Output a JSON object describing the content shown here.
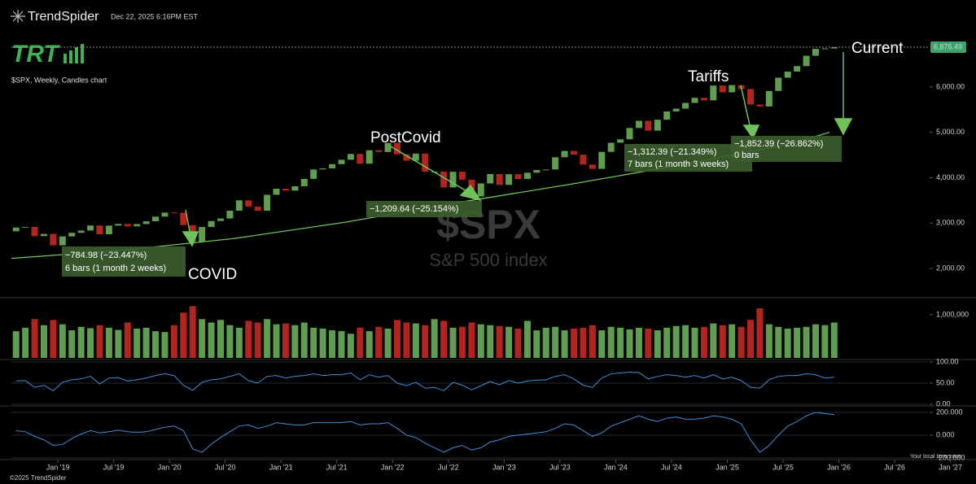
{
  "chart_data": {
    "type": "candlestick",
    "brand": "TrendSpider",
    "timestamp": "Dec 22, 2025 6:16PM EST",
    "logo": "TRT",
    "subtitle": "$SPX, Weekly, Candles chart",
    "watermark": "$SPX",
    "watermark_subtitle": "S&P 500 index",
    "copyright": "©2025 TrendSpider",
    "timezone_note": "Your local time zone",
    "up_color": "#5f9e4f",
    "down_color": "#b3241c",
    "ma_color": "#6fc35a",
    "x": [
      "2018-08",
      "2018-09",
      "2018-10",
      "2018-11",
      "2018-12",
      "2019-01",
      "2019-02",
      "2019-03",
      "2019-04",
      "2019-05",
      "2019-06",
      "2019-07",
      "2019-08",
      "2019-09",
      "2019-10",
      "2019-11",
      "2019-12",
      "2020-01",
      "2020-02",
      "2020-03",
      "2020-04",
      "2020-05",
      "2020-06",
      "2020-07",
      "2020-08",
      "2020-09",
      "2020-10",
      "2020-11",
      "2020-12",
      "2021-01",
      "2021-02",
      "2021-03",
      "2021-04",
      "2021-05",
      "2021-06",
      "2021-07",
      "2021-08",
      "2021-09",
      "2021-10",
      "2021-11",
      "2021-12",
      "2022-01",
      "2022-02",
      "2022-03",
      "2022-04",
      "2022-05",
      "2022-06",
      "2022-07",
      "2022-08",
      "2022-09",
      "2022-10",
      "2022-11",
      "2022-12",
      "2023-01",
      "2023-02",
      "2023-03",
      "2023-04",
      "2023-05",
      "2023-06",
      "2023-07",
      "2023-08",
      "2023-09",
      "2023-10",
      "2023-11",
      "2023-12",
      "2024-01",
      "2024-02",
      "2024-03",
      "2024-04",
      "2024-05",
      "2024-06",
      "2024-07",
      "2024-08",
      "2024-09",
      "2024-10",
      "2024-11",
      "2024-12",
      "2025-01",
      "2025-02",
      "2025-03",
      "2025-04",
      "2025-05",
      "2025-06",
      "2025-07",
      "2025-08",
      "2025-09",
      "2025-10",
      "2025-11",
      "2025-12"
    ],
    "open": [
      2816,
      2901,
      2914,
      2711,
      2760,
      2507,
      2704,
      2784,
      2834,
      2946,
      2752,
      2942,
      2980,
      2926,
      2977,
      3038,
      3141,
      3231,
      3226,
      2954,
      2585,
      2912,
      3044,
      3100,
      3271,
      3500,
      3363,
      3270,
      3622,
      3756,
      3714,
      3811,
      3973,
      4181,
      4204,
      4298,
      4395,
      4523,
      4308,
      4605,
      4567,
      4766,
      4516,
      4374,
      4530,
      4132,
      4132,
      3785,
      4130,
      3955,
      3586,
      3872,
      4080,
      3840,
      4077,
      3970,
      4109,
      4169,
      4180,
      4450,
      4589,
      4508,
      4288,
      4194,
      4568,
      4770,
      4846,
      5096,
      5254,
      5036,
      5278,
      5460,
      5522,
      5648,
      5762,
      5705,
      6032,
      5882,
      6041,
      5955,
      5612,
      5569,
      5912,
      6205,
      6339,
      6460,
      6688,
      6840,
      6849
    ],
    "close": [
      2901,
      2914,
      2711,
      2760,
      2507,
      2704,
      2784,
      2834,
      2946,
      2752,
      2942,
      2980,
      2926,
      2977,
      3038,
      3141,
      3231,
      3226,
      2954,
      2585,
      2912,
      3044,
      3100,
      3271,
      3500,
      3363,
      3270,
      3622,
      3756,
      3714,
      3811,
      3973,
      4181,
      4204,
      4298,
      4395,
      4523,
      4308,
      4605,
      4567,
      4766,
      4516,
      4374,
      4530,
      4132,
      4132,
      3785,
      4130,
      3955,
      3586,
      3872,
      4080,
      3840,
      4077,
      3970,
      4109,
      4169,
      4180,
      4450,
      4589,
      4508,
      4288,
      4194,
      4568,
      4770,
      4846,
      5096,
      5254,
      5036,
      5278,
      5460,
      5522,
      5648,
      5762,
      5705,
      6032,
      5882,
      6041,
      5955,
      5612,
      5569,
      5912,
      6205,
      6339,
      6460,
      6688,
      6840,
      6849,
      6876.49
    ],
    "last_price": {
      "value": 6876.49,
      "label": "6,876.49"
    },
    "xlim": [
      "2018-08",
      "2027-02"
    ],
    "xticks": [
      {
        "value": "2019-01",
        "label": "Jan '19"
      },
      {
        "value": "2019-07",
        "label": "Jul '19"
      },
      {
        "value": "2020-01",
        "label": "Jan '20"
      },
      {
        "value": "2020-07",
        "label": "Jul '20"
      },
      {
        "value": "2021-01",
        "label": "Jan '21"
      },
      {
        "value": "2021-07",
        "label": "Jul '21"
      },
      {
        "value": "2022-01",
        "label": "Jan '22"
      },
      {
        "value": "2022-07",
        "label": "Jul '22"
      },
      {
        "value": "2023-01",
        "label": "Jan '23"
      },
      {
        "value": "2023-07",
        "label": "Jul '23"
      },
      {
        "value": "2024-01",
        "label": "Jan '24"
      },
      {
        "value": "2024-07",
        "label": "Jul '24"
      },
      {
        "value": "2025-01",
        "label": "Jan '25"
      },
      {
        "value": "2025-07",
        "label": "Jul '25"
      },
      {
        "value": "2026-01",
        "label": "Jan '26"
      },
      {
        "value": "2026-07",
        "label": "Jul '26"
      },
      {
        "value": "2027-01",
        "label": "Jan '27"
      }
    ],
    "ylim": [
      1550,
      7200
    ],
    "yticks": [
      {
        "value": 2000,
        "label": "2,000.00"
      },
      {
        "value": 3000,
        "label": "3,000.00"
      },
      {
        "value": 4000,
        "label": "4,000.00"
      },
      {
        "value": 5000,
        "label": "5,000.00"
      },
      {
        "value": 6000,
        "label": "6,000.00"
      }
    ],
    "ma": {
      "x": [
        "2018-08",
        "2019-08",
        "2020-08",
        "2021-08",
        "2022-08",
        "2023-08",
        "2024-08",
        "2025-08",
        "2025-12"
      ],
      "values": [
        2220,
        2400,
        2660,
        3020,
        3450,
        3850,
        4280,
        4760,
        5000
      ]
    },
    "annotations": {
      "covid": {
        "label": "COVID",
        "change": "−784.98 (−23.447%)",
        "bars": "6 bars (1 month 2 weeks)"
      },
      "postcovid": {
        "label": "PostCovid",
        "change": "−1,209.64 (−25.154%)"
      },
      "tariffs": {
        "label": "Tariffs",
        "change": "−1,312.39 (−21.349%)",
        "bars": "7 bars (1 month 3 weeks)"
      },
      "current": {
        "label": "Current",
        "change": "−1,852.39 (−26.862%)",
        "bars": "0 bars"
      }
    },
    "volume": {
      "ylim": [
        0,
        1320000
      ],
      "yticks": [
        {
          "value": 1000000,
          "label": "1,000,000"
        }
      ],
      "values": [
        620000,
        700000,
        900000,
        760000,
        880000,
        780000,
        640000,
        720000,
        690000,
        760000,
        700000,
        650000,
        820000,
        680000,
        700000,
        620000,
        600000,
        760000,
        1050000,
        1200000,
        900000,
        820000,
        880000,
        760000,
        700000,
        860000,
        820000,
        900000,
        780000,
        800000,
        760000,
        820000,
        700000,
        680000,
        640000,
        620000,
        560000,
        700000,
        620000,
        720000,
        680000,
        880000,
        820000,
        800000,
        760000,
        900000,
        860000,
        700000,
        720000,
        820000,
        780000,
        760000,
        740000,
        720000,
        680000,
        860000,
        640000,
        700000,
        720000,
        640000,
        680000,
        700000,
        760000,
        640000,
        720000,
        700000,
        660000,
        700000,
        680000,
        640000,
        700000,
        740000,
        760000,
        700000,
        720000,
        800000,
        760000,
        780000,
        720000,
        880000,
        1150000,
        780000,
        720000,
        680000,
        700000,
        720000,
        780000,
        760000,
        820000
      ]
    },
    "rsi": {
      "ylim": [
        0,
        100
      ],
      "color": "#3d8fd6",
      "yticks": [
        {
          "value": 0,
          "label": "0.00"
        },
        {
          "value": 50,
          "label": "50.00"
        },
        {
          "value": 100,
          "label": "100.00"
        }
      ],
      "values": [
        55,
        56,
        40,
        45,
        32,
        52,
        58,
        60,
        66,
        48,
        62,
        63,
        55,
        58,
        62,
        68,
        72,
        68,
        45,
        33,
        52,
        58,
        60,
        66,
        72,
        56,
        50,
        66,
        68,
        62,
        66,
        68,
        72,
        68,
        70,
        70,
        74,
        58,
        70,
        64,
        68,
        50,
        44,
        52,
        38,
        40,
        32,
        52,
        45,
        34,
        44,
        54,
        46,
        56,
        50,
        55,
        57,
        58,
        66,
        70,
        60,
        45,
        40,
        62,
        72,
        74,
        76,
        75,
        60,
        66,
        70,
        68,
        64,
        68,
        62,
        70,
        60,
        64,
        56,
        40,
        38,
        58,
        66,
        68,
        68,
        72,
        70,
        62,
        64
      ]
    },
    "macd": {
      "ylim": [
        -200,
        250
      ],
      "color": "#3d8fd6",
      "yticks": [
        {
          "value": -200,
          "label": "-200.000"
        },
        {
          "value": 0,
          "label": "0.000"
        },
        {
          "value": 200,
          "label": "200.000"
        }
      ],
      "values": [
        40,
        30,
        -10,
        -40,
        -90,
        -80,
        -30,
        10,
        40,
        20,
        30,
        45,
        30,
        25,
        30,
        50,
        70,
        80,
        40,
        -120,
        -150,
        -80,
        -20,
        30,
        80,
        90,
        60,
        80,
        110,
        100,
        90,
        90,
        110,
        110,
        110,
        110,
        120,
        90,
        100,
        100,
        110,
        60,
        0,
        -20,
        -70,
        -110,
        -150,
        -110,
        -90,
        -130,
        -110,
        -60,
        -40,
        -10,
        0,
        10,
        20,
        30,
        60,
        100,
        90,
        40,
        -10,
        20,
        80,
        110,
        140,
        170,
        140,
        120,
        150,
        160,
        140,
        140,
        150,
        170,
        160,
        140,
        100,
        -40,
        -150,
        -90,
        0,
        80,
        120,
        170,
        200,
        190,
        180
      ]
    }
  }
}
